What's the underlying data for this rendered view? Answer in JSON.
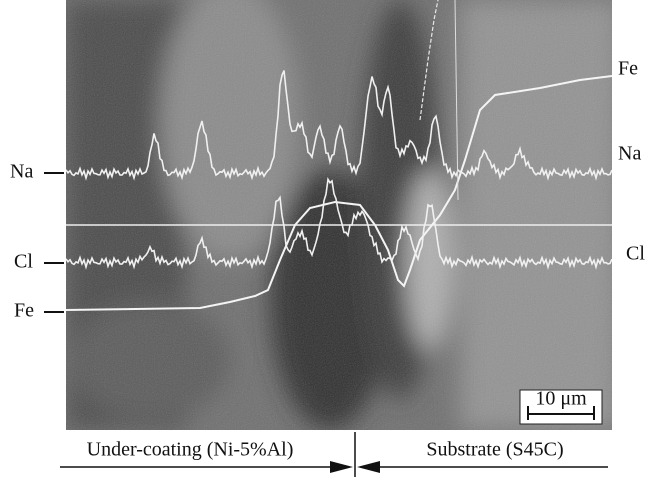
{
  "labels_left": [
    "Na",
    "Cl",
    "Fe"
  ],
  "labels_right": [
    "Fe",
    "Na",
    "Cl"
  ],
  "scale_bar": "10 μm",
  "regions": [
    "Under-coating (Ni-5%Al)",
    "Substrate (S45C)"
  ]
}
